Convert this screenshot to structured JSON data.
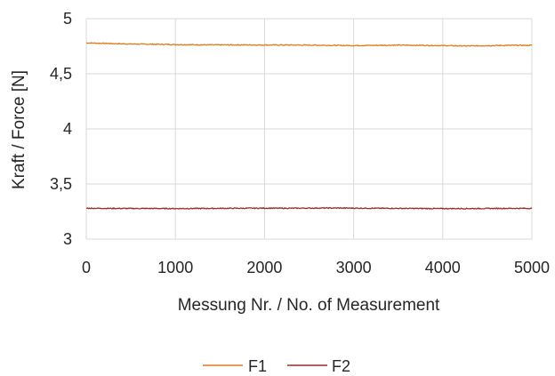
{
  "chart_data": {
    "type": "line",
    "title": "",
    "xlabel": "Messung Nr. / No. of Measurement",
    "ylabel": "Kraft / Force [N]",
    "xlim": [
      0,
      5000
    ],
    "ylim": [
      3,
      5
    ],
    "x_ticks": [
      0,
      1000,
      2000,
      3000,
      4000,
      5000
    ],
    "x_tick_labels": [
      "0",
      "1000",
      "2000",
      "3000",
      "4000",
      "5000"
    ],
    "y_ticks": [
      3,
      3.5,
      4,
      4.5,
      5
    ],
    "y_tick_labels": [
      "3",
      "3,5",
      "4",
      "4,5",
      "5"
    ],
    "grid": true,
    "legend_position": "bottom",
    "series": [
      {
        "name": "F1",
        "color": "#E07B1A",
        "x": [
          0,
          250,
          500,
          750,
          1000,
          1250,
          1500,
          1750,
          2000,
          2250,
          2500,
          2750,
          3000,
          3250,
          3500,
          3750,
          4000,
          4250,
          4500,
          4750,
          5000
        ],
        "values": [
          4.78,
          4.775,
          4.77,
          4.768,
          4.765,
          4.763,
          4.762,
          4.762,
          4.761,
          4.761,
          4.76,
          4.758,
          4.756,
          4.758,
          4.76,
          4.758,
          4.756,
          4.752,
          4.755,
          4.758,
          4.758
        ]
      },
      {
        "name": "F2",
        "color": "#9E2A2B",
        "x": [
          0,
          250,
          500,
          750,
          1000,
          1250,
          1500,
          1750,
          2000,
          2250,
          2500,
          2750,
          3000,
          3250,
          3500,
          3750,
          4000,
          4250,
          4500,
          4750,
          5000
        ],
        "values": [
          3.28,
          3.279,
          3.278,
          3.278,
          3.277,
          3.278,
          3.279,
          3.28,
          3.281,
          3.28,
          3.281,
          3.282,
          3.281,
          3.28,
          3.279,
          3.278,
          3.277,
          3.277,
          3.278,
          3.279,
          3.279
        ]
      }
    ]
  }
}
